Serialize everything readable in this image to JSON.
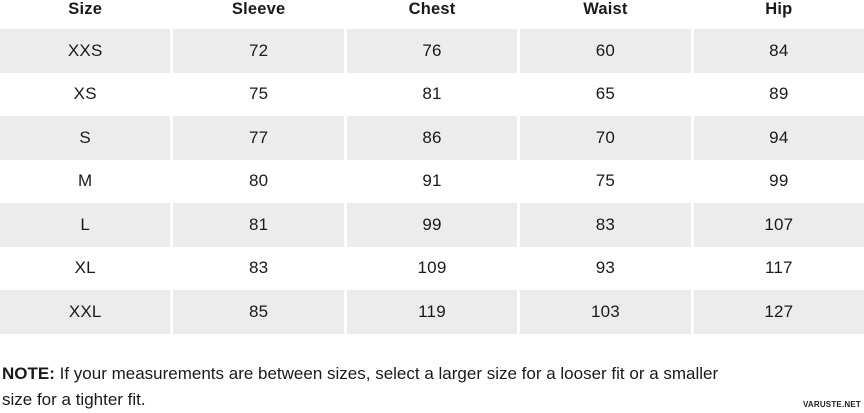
{
  "chart_data": {
    "type": "table",
    "columns": [
      "Size",
      "Sleeve",
      "Chest",
      "Waist",
      "Hip"
    ],
    "rows": [
      [
        "XXS",
        72,
        76,
        60,
        84
      ],
      [
        "XS",
        75,
        81,
        65,
        89
      ],
      [
        "S",
        77,
        86,
        70,
        94
      ],
      [
        "M",
        80,
        91,
        75,
        99
      ],
      [
        "L",
        81,
        99,
        83,
        107
      ],
      [
        "XL",
        83,
        109,
        93,
        117
      ],
      [
        "XXL",
        85,
        119,
        103,
        127
      ]
    ],
    "title": "",
    "note": "NOTE: If your measurements are between sizes, select a larger size for a looser fit or a smaller size for a tighter fit."
  },
  "table": {
    "headers": [
      "Size",
      "Sleeve",
      "Chest",
      "Waist",
      "Hip"
    ],
    "rows": [
      [
        "XXS",
        "72",
        "76",
        "60",
        "84"
      ],
      [
        "XS",
        "75",
        "81",
        "65",
        "89"
      ],
      [
        "S",
        "77",
        "86",
        "70",
        "94"
      ],
      [
        "M",
        "80",
        "91",
        "75",
        "99"
      ],
      [
        "L",
        "81",
        "99",
        "83",
        "107"
      ],
      [
        "XL",
        "83",
        "109",
        "93",
        "117"
      ],
      [
        "XXL",
        "85",
        "119",
        "103",
        "127"
      ]
    ]
  },
  "note": {
    "label": "NOTE:",
    "text": " If your measurements are between sizes, select a larger size for a looser fit or a smaller size for a tighter fit."
  },
  "watermark": "VARUSTE.NET",
  "colors": {
    "row_stripe": "#ececec",
    "text": "#1a1a1a",
    "background": "#ffffff"
  }
}
